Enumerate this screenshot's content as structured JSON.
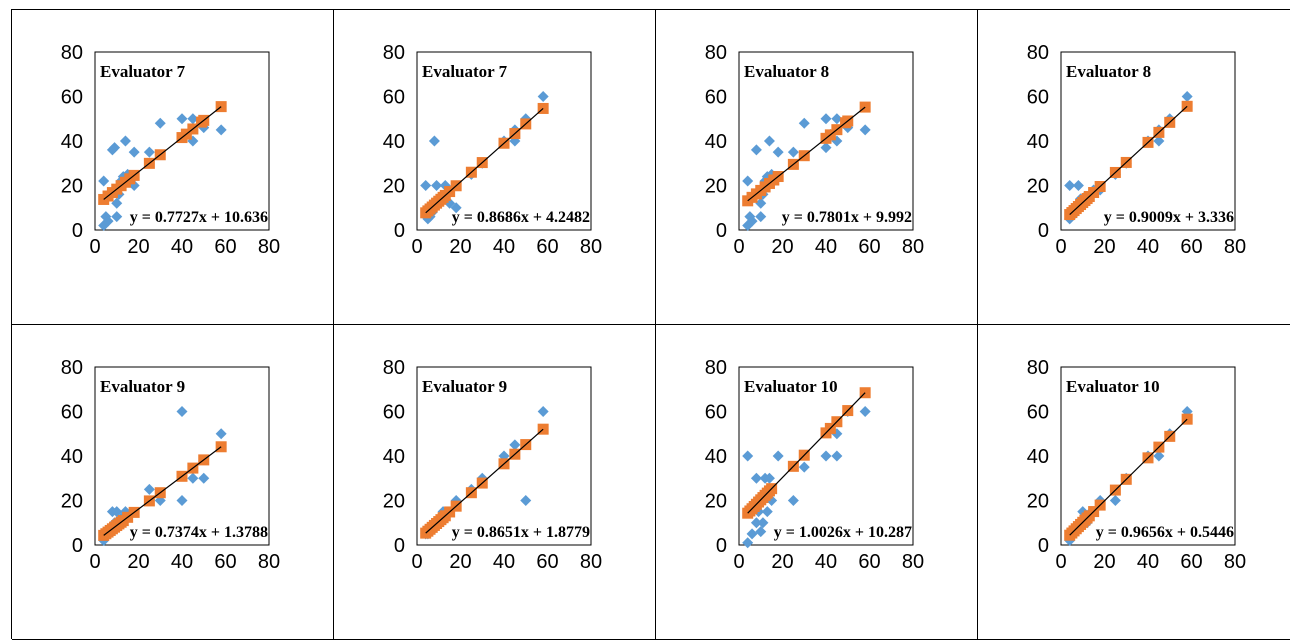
{
  "colors": {
    "points": "#5B9BD5",
    "fitted": "#ED7D31",
    "trendline": "#000000"
  },
  "chart_data": [
    {
      "type": "scatter",
      "title": "Evaluator 7",
      "equation": "y = 0.7727x + 10.636",
      "xlim": [
        0,
        80
      ],
      "ylim": [
        0,
        80
      ],
      "xticks": [
        "0",
        "20",
        "40",
        "60",
        "80"
      ],
      "yticks": [
        "0",
        "20",
        "40",
        "60",
        "80"
      ],
      "trendline": {
        "slope": 0.7727,
        "intercept": 10.636
      },
      "points": [
        [
          4,
          2
        ],
        [
          4,
          22
        ],
        [
          5,
          6
        ],
        [
          6,
          4
        ],
        [
          6,
          15
        ],
        [
          8,
          36
        ],
        [
          9,
          37
        ],
        [
          10,
          6
        ],
        [
          10,
          12
        ],
        [
          11,
          16
        ],
        [
          12,
          22
        ],
        [
          13,
          24
        ],
        [
          14,
          40
        ],
        [
          15,
          25
        ],
        [
          16,
          22
        ],
        [
          18,
          20
        ],
        [
          18,
          35
        ],
        [
          25,
          35
        ],
        [
          30,
          48
        ],
        [
          40,
          50
        ],
        [
          42,
          43
        ],
        [
          45,
          40
        ],
        [
          45,
          50
        ],
        [
          49,
          48
        ],
        [
          50,
          46
        ],
        [
          58,
          45
        ]
      ],
      "fitted_x": [
        4,
        6,
        8,
        10,
        12,
        14,
        16,
        18,
        25,
        30,
        40,
        42,
        45,
        49,
        50,
        58
      ]
    },
    {
      "type": "scatter",
      "title": "Evaluator 7",
      "equation": "y = 0.8686x + 4.2482",
      "xlim": [
        0,
        80
      ],
      "ylim": [
        0,
        80
      ],
      "xticks": [
        "0",
        "20",
        "40",
        "60",
        "80"
      ],
      "yticks": [
        "0",
        "20",
        "40",
        "60",
        "80"
      ],
      "trendline": {
        "slope": 0.8686,
        "intercept": 4.2482
      },
      "points": [
        [
          4,
          20
        ],
        [
          5,
          5
        ],
        [
          6,
          6
        ],
        [
          7,
          8
        ],
        [
          8,
          10
        ],
        [
          8,
          40
        ],
        [
          9,
          20
        ],
        [
          10,
          12
        ],
        [
          11,
          15
        ],
        [
          12,
          14
        ],
        [
          13,
          20
        ],
        [
          15,
          12
        ],
        [
          18,
          10
        ],
        [
          25,
          25
        ],
        [
          30,
          30
        ],
        [
          40,
          40
        ],
        [
          45,
          40
        ],
        [
          45,
          45
        ],
        [
          50,
          50
        ],
        [
          58,
          60
        ]
      ],
      "fitted_x": [
        4,
        5,
        6,
        7,
        8,
        9,
        10,
        11,
        12,
        13,
        15,
        18,
        25,
        30,
        40,
        45,
        50,
        58
      ]
    },
    {
      "type": "scatter",
      "title": "Evaluator 8",
      "equation": "y = 0.7801x + 9.992",
      "xlim": [
        0,
        80
      ],
      "ylim": [
        0,
        80
      ],
      "xticks": [
        "0",
        "20",
        "40",
        "60",
        "80"
      ],
      "yticks": [
        "0",
        "20",
        "40",
        "60",
        "80"
      ],
      "trendline": {
        "slope": 0.7801,
        "intercept": 9.992
      },
      "points": [
        [
          4,
          2
        ],
        [
          4,
          22
        ],
        [
          5,
          6
        ],
        [
          6,
          4
        ],
        [
          6,
          15
        ],
        [
          8,
          36
        ],
        [
          10,
          6
        ],
        [
          10,
          12
        ],
        [
          11,
          16
        ],
        [
          12,
          22
        ],
        [
          13,
          24
        ],
        [
          14,
          40
        ],
        [
          15,
          25
        ],
        [
          16,
          22
        ],
        [
          18,
          35
        ],
        [
          25,
          35
        ],
        [
          30,
          48
        ],
        [
          40,
          37
        ],
        [
          40,
          50
        ],
        [
          42,
          43
        ],
        [
          45,
          40
        ],
        [
          45,
          50
        ],
        [
          49,
          48
        ],
        [
          50,
          46
        ],
        [
          58,
          45
        ]
      ],
      "fitted_x": [
        4,
        6,
        8,
        10,
        12,
        14,
        16,
        18,
        25,
        30,
        40,
        42,
        45,
        49,
        50,
        58
      ]
    },
    {
      "type": "scatter",
      "title": "Evaluator 8",
      "equation": "y = 0.9009x + 3.336",
      "xlim": [
        0,
        80
      ],
      "ylim": [
        0,
        80
      ],
      "xticks": [
        "0",
        "20",
        "40",
        "60",
        "80"
      ],
      "yticks": [
        "0",
        "20",
        "40",
        "60",
        "80"
      ],
      "trendline": {
        "slope": 0.9009,
        "intercept": 3.336
      },
      "points": [
        [
          4,
          5
        ],
        [
          4,
          20
        ],
        [
          6,
          7
        ],
        [
          8,
          20
        ],
        [
          9,
          14
        ],
        [
          10,
          12
        ],
        [
          11,
          15
        ],
        [
          12,
          14
        ],
        [
          13,
          15
        ],
        [
          15,
          18
        ],
        [
          18,
          18
        ],
        [
          25,
          25
        ],
        [
          30,
          30
        ],
        [
          40,
          40
        ],
        [
          45,
          40
        ],
        [
          45,
          45
        ],
        [
          50,
          50
        ],
        [
          58,
          60
        ]
      ],
      "fitted_x": [
        4,
        5,
        6,
        7,
        8,
        9,
        10,
        11,
        12,
        13,
        15,
        18,
        25,
        30,
        40,
        45,
        50,
        58
      ]
    },
    {
      "type": "scatter",
      "title": "Evaluator 9",
      "equation": "y = 0.7374x + 1.3788",
      "xlim": [
        0,
        80
      ],
      "ylim": [
        0,
        80
      ],
      "xticks": [
        "0",
        "20",
        "40",
        "60",
        "80"
      ],
      "yticks": [
        "0",
        "20",
        "40",
        "60",
        "80"
      ],
      "trendline": {
        "slope": 0.7374,
        "intercept": 1.3788
      },
      "points": [
        [
          4,
          2
        ],
        [
          5,
          5
        ],
        [
          6,
          6
        ],
        [
          8,
          15
        ],
        [
          9,
          10
        ],
        [
          10,
          15
        ],
        [
          11,
          10
        ],
        [
          12,
          12
        ],
        [
          14,
          15
        ],
        [
          15,
          14
        ],
        [
          25,
          25
        ],
        [
          30,
          20
        ],
        [
          40,
          60
        ],
        [
          40,
          20
        ],
        [
          45,
          30
        ],
        [
          50,
          30
        ],
        [
          58,
          50
        ]
      ],
      "fitted_x": [
        4,
        5,
        6,
        7,
        8,
        9,
        10,
        11,
        12,
        13,
        15,
        18,
        25,
        30,
        40,
        45,
        50,
        58
      ]
    },
    {
      "type": "scatter",
      "title": "Evaluator 9",
      "equation": "y = 0.8651x + 1.8779",
      "xlim": [
        0,
        80
      ],
      "ylim": [
        0,
        80
      ],
      "xticks": [
        "0",
        "20",
        "40",
        "60",
        "80"
      ],
      "yticks": [
        "0",
        "20",
        "40",
        "60",
        "80"
      ],
      "trendline": {
        "slope": 0.8651,
        "intercept": 1.8779
      },
      "points": [
        [
          4,
          5
        ],
        [
          5,
          5
        ],
        [
          6,
          6
        ],
        [
          8,
          8
        ],
        [
          10,
          10
        ],
        [
          12,
          15
        ],
        [
          14,
          14
        ],
        [
          18,
          20
        ],
        [
          25,
          25
        ],
        [
          30,
          30
        ],
        [
          40,
          40
        ],
        [
          45,
          45
        ],
        [
          50,
          20
        ],
        [
          58,
          60
        ]
      ],
      "fitted_x": [
        4,
        5,
        6,
        7,
        8,
        9,
        10,
        11,
        12,
        13,
        15,
        18,
        25,
        30,
        40,
        45,
        50,
        58
      ]
    },
    {
      "type": "scatter",
      "title": "Evaluator 10",
      "equation": "y = 1.0026x + 10.287",
      "xlim": [
        0,
        80
      ],
      "ylim": [
        0,
        80
      ],
      "xticks": [
        "0",
        "20",
        "40",
        "60",
        "80"
      ],
      "yticks": [
        "0",
        "20",
        "40",
        "60",
        "80"
      ],
      "trendline": {
        "slope": 1.0026,
        "intercept": 10.287
      },
      "points": [
        [
          4,
          1
        ],
        [
          4,
          40
        ],
        [
          6,
          5
        ],
        [
          8,
          10
        ],
        [
          8,
          30
        ],
        [
          9,
          15
        ],
        [
          10,
          6
        ],
        [
          10,
          20
        ],
        [
          11,
          10
        ],
        [
          12,
          30
        ],
        [
          13,
          15
        ],
        [
          14,
          30
        ],
        [
          15,
          20
        ],
        [
          18,
          40
        ],
        [
          25,
          20
        ],
        [
          30,
          35
        ],
        [
          40,
          40
        ],
        [
          45,
          40
        ],
        [
          45,
          50
        ],
        [
          50,
          60
        ],
        [
          58,
          60
        ]
      ],
      "fitted_x": [
        4,
        5,
        6,
        7,
        8,
        9,
        10,
        11,
        12,
        13,
        14,
        15,
        25,
        30,
        40,
        42,
        45,
        50,
        58
      ]
    },
    {
      "type": "scatter",
      "title": "Evaluator 10",
      "equation": "y = 0.9656x + 0.5446",
      "xlim": [
        0,
        80
      ],
      "ylim": [
        0,
        80
      ],
      "xticks": [
        "0",
        "20",
        "40",
        "60",
        "80"
      ],
      "yticks": [
        "0",
        "20",
        "40",
        "60",
        "80"
      ],
      "trendline": {
        "slope": 0.9656,
        "intercept": 0.5446
      },
      "points": [
        [
          4,
          2
        ],
        [
          5,
          5
        ],
        [
          6,
          6
        ],
        [
          8,
          8
        ],
        [
          10,
          15
        ],
        [
          12,
          10
        ],
        [
          14,
          15
        ],
        [
          18,
          20
        ],
        [
          25,
          20
        ],
        [
          30,
          30
        ],
        [
          40,
          40
        ],
        [
          45,
          40
        ],
        [
          50,
          50
        ],
        [
          58,
          60
        ]
      ],
      "fitted_x": [
        4,
        5,
        6,
        7,
        8,
        9,
        10,
        11,
        12,
        13,
        15,
        18,
        25,
        30,
        40,
        45,
        50,
        58
      ]
    }
  ]
}
